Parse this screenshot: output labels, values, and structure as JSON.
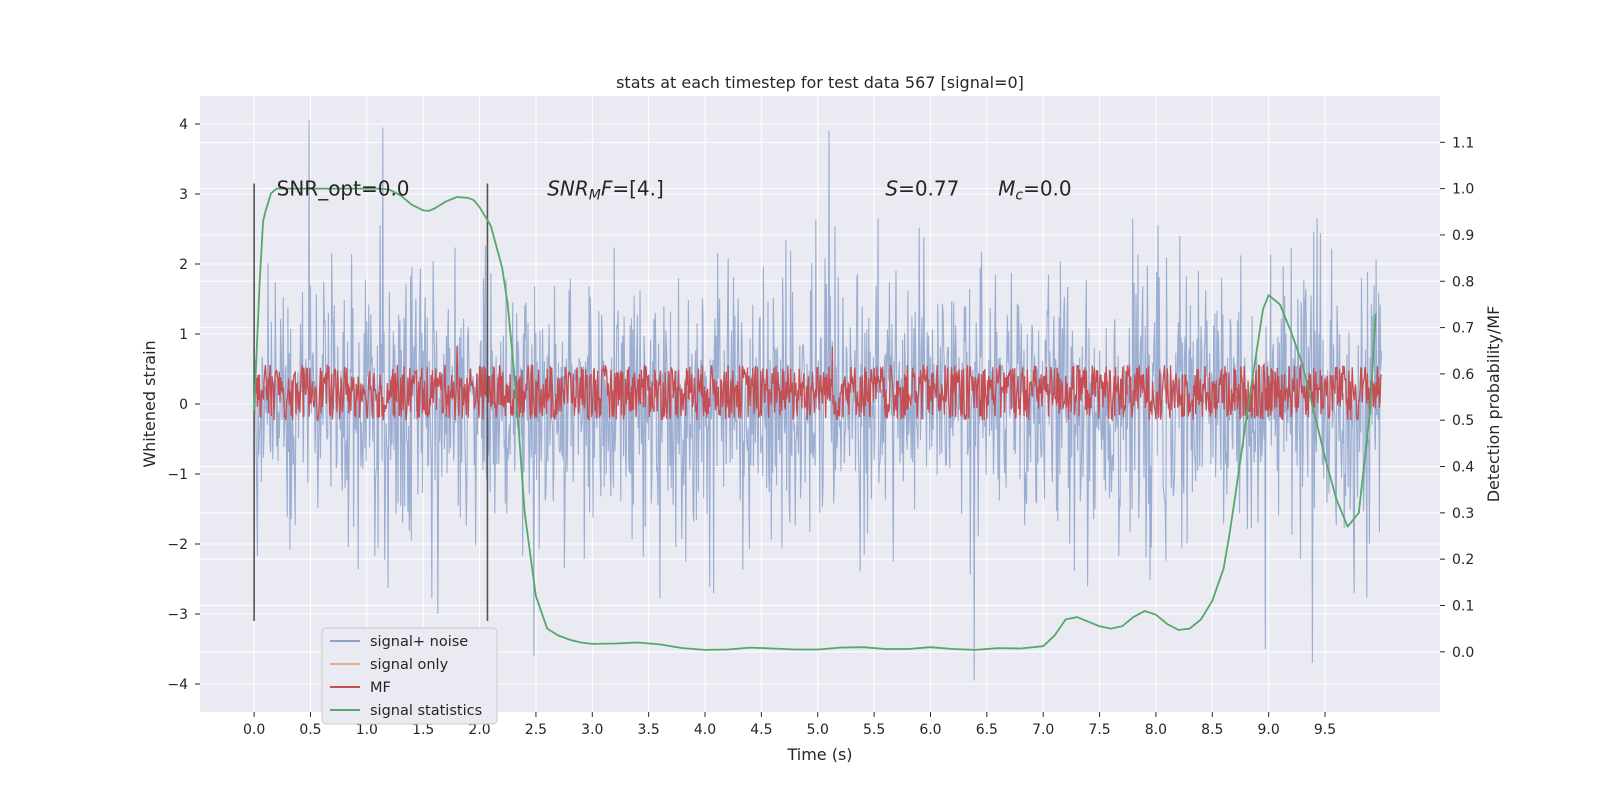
{
  "chart_data": {
    "type": "line",
    "title": "stats at each timestep for test data 567 [signal=0]",
    "xlabel": "Time (s)",
    "ylabel_left": "Whitened strain",
    "ylabel_right": "Detection probability/MF",
    "xlim": [
      -0.48,
      10.52
    ],
    "ylim_left": [
      -4.4,
      4.4
    ],
    "ylim_right": [
      -0.13,
      1.2
    ],
    "x_ticks": [
      "0.0",
      "0.5",
      "1.0",
      "1.5",
      "2.0",
      "2.5",
      "3.0",
      "3.5",
      "4.0",
      "4.5",
      "5.0",
      "5.5",
      "6.0",
      "6.5",
      "7.0",
      "7.5",
      "8.0",
      "8.5",
      "9.0",
      "9.5"
    ],
    "y_ticks_left": [
      "4",
      "3",
      "2",
      "1",
      "0",
      "−1",
      "−2",
      "−3",
      "−4"
    ],
    "y_ticks_right": [
      "1.1",
      "1.0",
      "0.9",
      "0.8",
      "0.7",
      "0.6",
      "0.5",
      "0.4",
      "0.3",
      "0.2",
      "0.1",
      "0.0"
    ],
    "grid": true,
    "legend_position": "lower-left",
    "colors": {
      "background": "#eaeaf2",
      "grid": "#ffffff",
      "signal_noise": "#4c72b0",
      "signal_only": "#dd8452",
      "mf": "#c44e52",
      "signal_statistics": "#55a868",
      "markers": "#555555"
    },
    "annotations": [
      {
        "x": 0.2,
        "y": 1.0,
        "html": "SNR_opt=0.0"
      },
      {
        "x": 2.6,
        "y": 1.0,
        "html": "<tspan font-style=\"italic\">SNR</tspan><tspan font-style=\"italic\" font-size=\"14\" dy=\"4\">M</tspan><tspan font-style=\"italic\" dy=\"-4\">F</tspan><tspan>=[4.]</tspan>"
      },
      {
        "x": 5.6,
        "y": 1.0,
        "html": "<tspan font-style=\"italic\">S</tspan><tspan>=0.77</tspan>"
      },
      {
        "x": 6.6,
        "y": 1.0,
        "html": "<tspan font-style=\"italic\">M</tspan><tspan font-style=\"italic\" font-size=\"14\" dy=\"4\">c</tspan><tspan dy=\"-4\">=0.0</tspan>"
      }
    ],
    "markers": [
      {
        "x": 0.0,
        "y_range": [
          -3.1,
          3.15
        ]
      },
      {
        "x": 2.07,
        "y_range": [
          -3.1,
          3.15
        ]
      }
    ],
    "series": [
      {
        "name": "signal+ noise",
        "kind": "noise",
        "axis": "left",
        "x_range": [
          0.0,
          10.0
        ],
        "typical_envelope": [
          -1.9,
          1.9
        ],
        "extremes": [
          {
            "x": 0.49,
            "y": 4.05
          },
          {
            "x": 1.14,
            "y": 3.95
          },
          {
            "x": 5.1,
            "y": 3.9
          },
          {
            "x": 2.48,
            "y": -3.6
          },
          {
            "x": 6.39,
            "y": -3.95
          },
          {
            "x": 9.39,
            "y": -3.7
          },
          {
            "x": 8.97,
            "y": -3.5
          },
          {
            "x": 1.63,
            "y": -3.0
          }
        ]
      },
      {
        "name": "signal only",
        "kind": "flat",
        "axis": "left",
        "x": [
          0.0,
          10.0
        ],
        "y": [
          0.0,
          0.0
        ]
      },
      {
        "name": "MF",
        "kind": "band",
        "axis": "right",
        "x_range": [
          0.0,
          10.0
        ],
        "band": [
          0.5,
          0.62
        ],
        "peaks": [
          {
            "x": 1.8,
            "y": 0.66
          },
          {
            "x": 5.13,
            "y": 0.66
          }
        ]
      },
      {
        "name": "signal statistics",
        "kind": "line",
        "axis": "right",
        "x": [
          0.0,
          0.05,
          0.08,
          0.1,
          0.15,
          0.2,
          0.3,
          0.5,
          0.7,
          0.9,
          1.1,
          1.2,
          1.3,
          1.4,
          1.5,
          1.55,
          1.6,
          1.7,
          1.8,
          1.9,
          1.95,
          2.0,
          2.1,
          2.2,
          2.25,
          2.3,
          2.35,
          2.4,
          2.5,
          2.6,
          2.7,
          2.8,
          2.9,
          3.0,
          3.2,
          3.4,
          3.6,
          3.8,
          4.0,
          4.2,
          4.4,
          4.6,
          4.8,
          5.0,
          5.2,
          5.4,
          5.6,
          5.8,
          6.0,
          6.2,
          6.4,
          6.6,
          6.8,
          7.0,
          7.1,
          7.2,
          7.3,
          7.5,
          7.6,
          7.7,
          7.8,
          7.9,
          8.0,
          8.1,
          8.2,
          8.3,
          8.4,
          8.5,
          8.6,
          8.65,
          8.7,
          8.8,
          8.9,
          8.95,
          9.0,
          9.1,
          9.2,
          9.3,
          9.4,
          9.5,
          9.6,
          9.7,
          9.8,
          9.9,
          9.95
        ],
        "y": [
          0.52,
          0.8,
          0.93,
          0.95,
          0.99,
          1.0,
          1.0,
          1.0,
          1.0,
          1.0,
          1.0,
          0.998,
          0.985,
          0.965,
          0.953,
          0.952,
          0.957,
          0.972,
          0.982,
          0.98,
          0.975,
          0.96,
          0.92,
          0.83,
          0.75,
          0.62,
          0.47,
          0.3,
          0.12,
          0.05,
          0.035,
          0.026,
          0.02,
          0.017,
          0.018,
          0.02,
          0.016,
          0.008,
          0.004,
          0.005,
          0.009,
          0.007,
          0.005,
          0.005,
          0.009,
          0.01,
          0.006,
          0.006,
          0.01,
          0.006,
          0.004,
          0.008,
          0.007,
          0.012,
          0.035,
          0.07,
          0.075,
          0.055,
          0.05,
          0.055,
          0.075,
          0.088,
          0.08,
          0.06,
          0.047,
          0.05,
          0.07,
          0.11,
          0.18,
          0.25,
          0.33,
          0.5,
          0.66,
          0.74,
          0.77,
          0.75,
          0.69,
          0.62,
          0.52,
          0.42,
          0.33,
          0.27,
          0.3,
          0.52,
          0.73
        ]
      }
    ]
  }
}
